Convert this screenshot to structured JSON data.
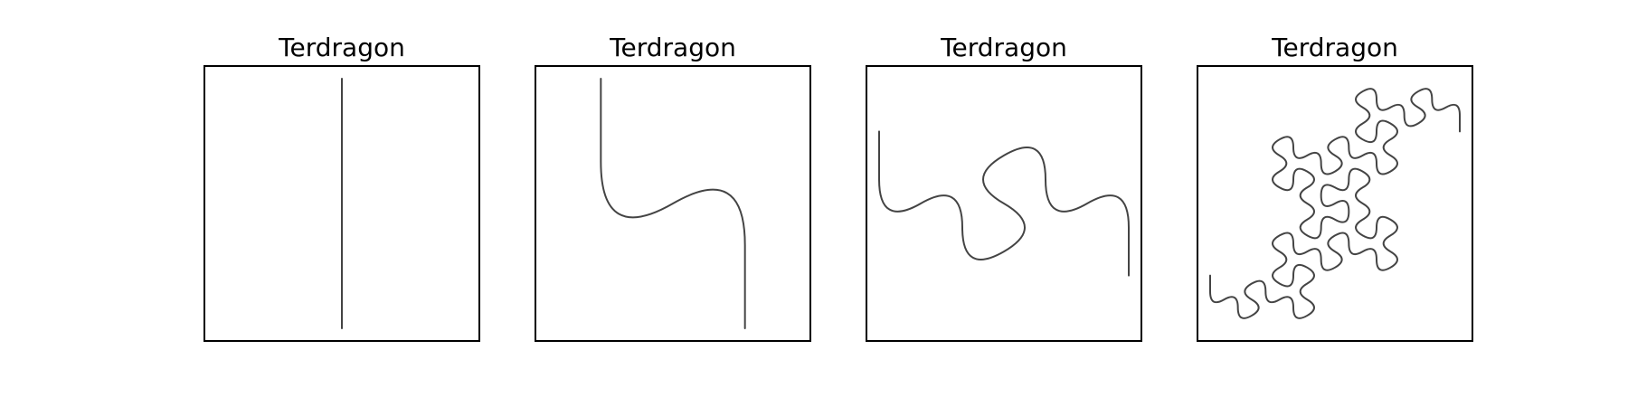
{
  "figure": {
    "panels": [
      {
        "title": "Terdragon",
        "iteration": 0
      },
      {
        "title": "Terdragon",
        "iteration": 1
      },
      {
        "title": "Terdragon",
        "iteration": 2
      },
      {
        "title": "Terdragon",
        "iteration": 4
      }
    ],
    "curve_color": "#444444",
    "frame_color": "#000000"
  }
}
